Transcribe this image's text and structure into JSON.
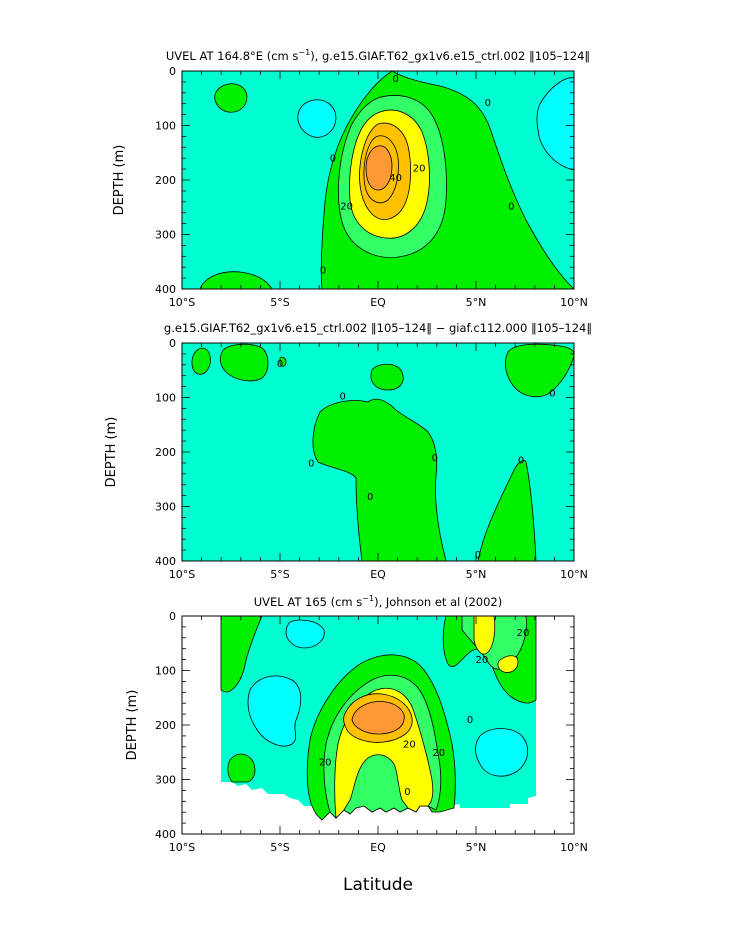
{
  "figure": {
    "xlabel": "Latitude",
    "colors": {
      "cyan": "#00ffff",
      "aqua": "#00ffd0",
      "green": "#00f000",
      "lightgreen": "#33ff66",
      "yellow": "#ffff00",
      "gold": "#ffc000",
      "orange": "#ff9933",
      "blank": "#ffffff"
    }
  },
  "chart_data": [
    {
      "type": "contour",
      "title_parts": [
        "UVEL AT 164.8°E (cm s",
        "−1",
        "), g.e15.GIAF.T62_gx1v6.e15_ctrl.002 ‖105–124‖"
      ],
      "ylabel": "DEPTH (m)",
      "xlim": [
        -10,
        10
      ],
      "ylim": [
        400,
        0
      ],
      "xticks": [
        -10,
        -5,
        0,
        5,
        10
      ],
      "xticklabels": [
        "10°S",
        "5°S",
        "EQ",
        "5°N",
        "10°N"
      ],
      "yticks": [
        0,
        100,
        200,
        300,
        400
      ],
      "yticklabels": [
        "0",
        "100",
        "200",
        "300",
        "400"
      ],
      "contour_levels": [
        0,
        10,
        20,
        30,
        40,
        50
      ],
      "contour_labels": [
        {
          "text": "0",
          "lat": 0.9,
          "depth": 14
        },
        {
          "text": "0",
          "lat": 5.6,
          "depth": 58
        },
        {
          "text": "0",
          "lat": -2.3,
          "depth": 160
        },
        {
          "text": "40",
          "lat": 0.9,
          "depth": 195
        },
        {
          "text": "20",
          "lat": 2.1,
          "depth": 178
        },
        {
          "text": "20",
          "lat": -1.6,
          "depth": 248
        },
        {
          "text": "0",
          "lat": 6.8,
          "depth": 248
        },
        {
          "text": "0",
          "lat": -2.8,
          "depth": 365
        }
      ]
    },
    {
      "type": "contour",
      "title_parts": [
        "g.e15.GIAF.T62_gx1v6.e15_ctrl.002 ‖105–124‖ − giaf.c112.000 ‖105–124‖"
      ],
      "ylabel": "DEPTH (m)",
      "xlim": [
        -10,
        10
      ],
      "ylim": [
        400,
        0
      ],
      "xticks": [
        -10,
        -5,
        0,
        5,
        10
      ],
      "xticklabels": [
        "10°S",
        "5°S",
        "EQ",
        "5°N",
        "10°N"
      ],
      "yticks": [
        0,
        100,
        200,
        300,
        400
      ],
      "yticklabels": [
        "0",
        "100",
        "200",
        "300",
        "400"
      ],
      "contour_labels": [
        {
          "text": "0",
          "lat": -5.0,
          "depth": 38
        },
        {
          "text": "0",
          "lat": -1.8,
          "depth": 97
        },
        {
          "text": "0",
          "lat": 8.9,
          "depth": 92
        },
        {
          "text": "0",
          "lat": -3.4,
          "depth": 220
        },
        {
          "text": "0",
          "lat": 2.9,
          "depth": 210
        },
        {
          "text": "0",
          "lat": 7.3,
          "depth": 215
        },
        {
          "text": "0",
          "lat": -0.4,
          "depth": 282
        },
        {
          "text": "0",
          "lat": 5.1,
          "depth": 388
        }
      ]
    },
    {
      "type": "contour",
      "title_parts": [
        "UVEL AT 165 (cm s",
        "−1",
        "), Johnson et al (2002)"
      ],
      "ylabel": "DEPTH (m)",
      "xlim": [
        -10,
        10
      ],
      "ylim": [
        400,
        0
      ],
      "xticks": [
        -10,
        -5,
        0,
        5,
        10
      ],
      "xticklabels": [
        "10°S",
        "5°S",
        "EQ",
        "5°N",
        "10°N"
      ],
      "yticks": [
        0,
        100,
        200,
        300,
        400
      ],
      "yticklabels": [
        "0",
        "100",
        "200",
        "300",
        "400"
      ],
      "data_extent": {
        "lat_min": -8,
        "lat_max": 8
      },
      "contour_labels": [
        {
          "text": "20",
          "lat": 7.4,
          "depth": 30
        },
        {
          "text": "20",
          "lat": 5.3,
          "depth": 80
        },
        {
          "text": "0",
          "lat": 4.7,
          "depth": 190
        },
        {
          "text": "20",
          "lat": 1.6,
          "depth": 235
        },
        {
          "text": "20",
          "lat": 3.1,
          "depth": 250
        },
        {
          "text": "20",
          "lat": -2.7,
          "depth": 268
        },
        {
          "text": "0",
          "lat": 1.5,
          "depth": 322
        }
      ]
    }
  ]
}
